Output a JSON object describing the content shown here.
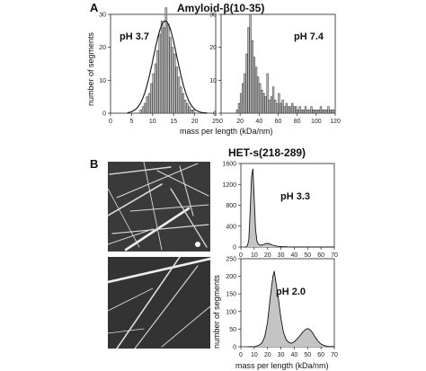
{
  "panel_a": {
    "letter": "A",
    "title": "Amyloid-β(10-35)",
    "ylabel": "number of segments",
    "xlabel": "mass per length (kDa/nm)"
  },
  "panel_b": {
    "letter": "B",
    "title": "HET-s(218-289)",
    "ylabel": "number of segments",
    "xlabel": "mass per length (kDa/nm)"
  },
  "chart_data": [
    {
      "id": "a-left",
      "type": "bar",
      "annotation": "pH 3.7",
      "xlim": [
        0,
        25
      ],
      "ylim": [
        0,
        30
      ],
      "xticks": [
        0,
        5,
        10,
        15,
        20,
        25
      ],
      "yticks": [
        0,
        10,
        20,
        30
      ],
      "bin_width": 0.5,
      "x": [
        7.0,
        7.5,
        8.0,
        8.5,
        9.0,
        9.5,
        10.0,
        10.5,
        11.0,
        11.5,
        12.0,
        12.5,
        13.0,
        13.5,
        14.0,
        14.5,
        15.0,
        15.5,
        16.0,
        16.5,
        17.0,
        17.5,
        18.0,
        18.5,
        19.0,
        19.5
      ],
      "values": [
        1,
        2,
        3,
        5,
        6,
        9,
        12,
        15,
        19,
        24,
        28,
        26,
        32,
        27,
        23,
        20,
        18,
        14,
        11,
        8,
        6,
        4,
        3,
        2,
        1,
        1
      ],
      "fit": {
        "type": "gaussian",
        "mean": 13.0,
        "sd": 2.8,
        "peak": 28
      }
    },
    {
      "id": "a-right",
      "type": "bar",
      "annotation": "pH 7.4",
      "xlim": [
        0,
        120
      ],
      "ylim": [
        0,
        30
      ],
      "xticks": [
        0,
        20,
        40,
        60,
        80,
        100,
        120
      ],
      "yticks": [
        0,
        10,
        20,
        30
      ],
      "bin_width": 2,
      "x": [
        16,
        18,
        20,
        22,
        24,
        26,
        28,
        30,
        32,
        34,
        36,
        38,
        40,
        42,
        44,
        46,
        48,
        50,
        52,
        54,
        56,
        58,
        60,
        62,
        64,
        66,
        68,
        70,
        72,
        74,
        76,
        78,
        80,
        82,
        84,
        86,
        88,
        90,
        92,
        94,
        96,
        98,
        100,
        102,
        104,
        106,
        108,
        110,
        112,
        114,
        116,
        118
      ],
      "values": [
        1,
        3,
        6,
        9,
        12,
        18,
        26,
        30,
        22,
        17,
        14,
        11,
        9,
        7,
        6,
        5,
        12,
        4,
        5,
        8,
        4,
        3,
        6,
        3,
        4,
        2,
        3,
        2,
        2,
        3,
        2,
        2,
        1,
        2,
        1,
        1,
        2,
        1,
        1,
        2,
        1,
        1,
        1,
        1,
        2,
        1,
        1,
        1,
        2,
        1,
        1,
        1
      ]
    },
    {
      "id": "b-top",
      "type": "area",
      "annotation": "pH 3.3",
      "xlim": [
        0,
        70
      ],
      "ylim": [
        0,
        1600
      ],
      "xticks": [
        0,
        10,
        20,
        30,
        40,
        50,
        60,
        70
      ],
      "yticks": [
        0,
        400,
        800,
        1200,
        1600
      ],
      "x": [
        3,
        4,
        5,
        6,
        7,
        8,
        9,
        10,
        11,
        12,
        13,
        14,
        15,
        16,
        18,
        20,
        22,
        24,
        26,
        28,
        30,
        35,
        40,
        50,
        60,
        70
      ],
      "values": [
        0,
        5,
        30,
        150,
        700,
        1350,
        1500,
        900,
        350,
        120,
        60,
        40,
        35,
        40,
        60,
        70,
        55,
        35,
        20,
        12,
        8,
        4,
        2,
        1,
        0,
        0
      ]
    },
    {
      "id": "b-bottom",
      "type": "area",
      "annotation": "pH 2.0",
      "xlim": [
        0,
        70
      ],
      "ylim": [
        0,
        250
      ],
      "xticks": [
        0,
        10,
        20,
        30,
        40,
        50,
        60,
        70
      ],
      "yticks": [
        0,
        50,
        100,
        150,
        200,
        250
      ],
      "x": [
        5,
        10,
        12,
        14,
        16,
        18,
        20,
        22,
        24,
        25,
        26,
        28,
        30,
        32,
        34,
        36,
        38,
        40,
        42,
        44,
        46,
        48,
        50,
        52,
        54,
        56,
        58,
        60,
        62,
        65,
        70
      ],
      "values": [
        0,
        0,
        2,
        5,
        12,
        30,
        70,
        140,
        200,
        215,
        190,
        140,
        80,
        40,
        20,
        12,
        10,
        14,
        22,
        30,
        40,
        48,
        52,
        48,
        38,
        25,
        15,
        8,
        4,
        1,
        0
      ]
    }
  ]
}
